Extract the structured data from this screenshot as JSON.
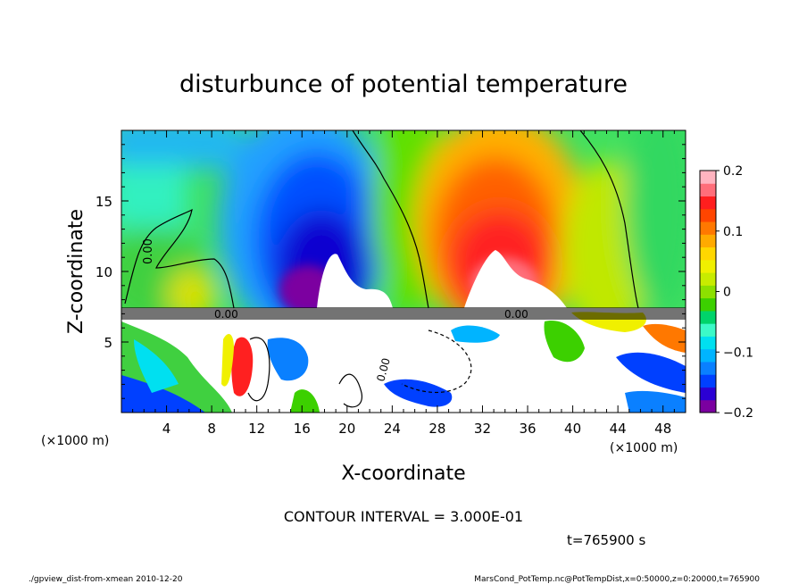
{
  "chart_data": {
    "type": "heatmap",
    "title": "disturbunce of potential temperature",
    "xlabel": "X-coordinate",
    "ylabel": "Z-coordinate",
    "x_units": "(×1000 m)",
    "y_units": "(×1000 m)",
    "xlim": [
      0,
      50
    ],
    "ylim": [
      0,
      20
    ],
    "x_ticks": [
      4,
      8,
      12,
      16,
      20,
      24,
      28,
      32,
      36,
      40,
      44,
      48
    ],
    "y_ticks": [
      5,
      10,
      15
    ],
    "colorbar": {
      "range": [
        -0.2,
        0.2
      ],
      "ticks": [
        "0.2",
        "0.1",
        "0",
        "−0.1",
        "−0.2"
      ],
      "tick_values": [
        0.2,
        0.1,
        0,
        -0.1,
        -0.2
      ],
      "colors": [
        "#7b00a0",
        "#2b00d4",
        "#0040ff",
        "#0a80ff",
        "#00b4ff",
        "#00e0f0",
        "#3cfac8",
        "#00d46a",
        "#3cd000",
        "#8ce000",
        "#c8ec00",
        "#f0f000",
        "#ffd700",
        "#ffaa00",
        "#ff7800",
        "#ff4500",
        "#ff1e1e",
        "#ff6e7a",
        "#ffb4c0"
      ]
    },
    "contour_labels": [
      "0.00",
      "0.00",
      "0.00",
      "0.00"
    ],
    "contour_interval_text": "CONTOUR INTERVAL = 3.000E-01",
    "time_text": "t=765900 s"
  },
  "footer": {
    "left": "./gpview_dist-from-xmean  2010-12-20",
    "right": "MarsCond_PotTemp.nc@PotTempDist,x=0:50000,z=0:20000,t=765900"
  }
}
